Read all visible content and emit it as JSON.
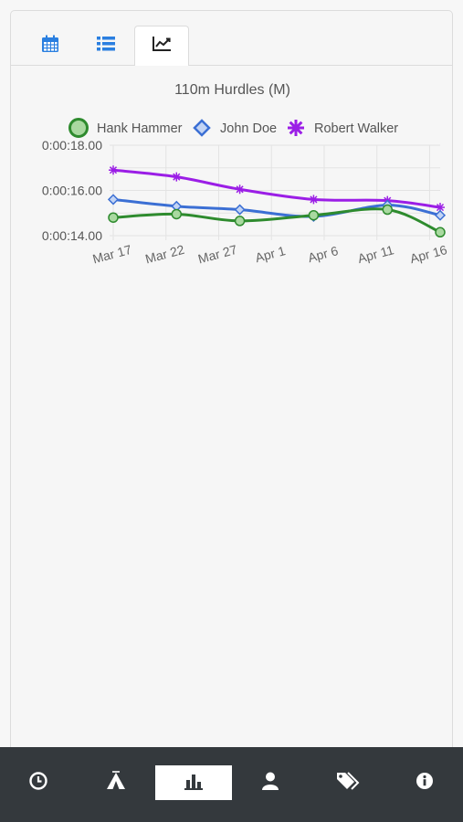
{
  "view_tabs": [
    {
      "icon": "calendar-icon",
      "active": false
    },
    {
      "icon": "list-icon",
      "active": false
    },
    {
      "icon": "line-chart-icon",
      "active": true
    }
  ],
  "chart_data": {
    "type": "line",
    "title": "110m Hurdles (M)",
    "xlabel": "",
    "ylabel": "",
    "x_ticks": [
      "Mar 17",
      "Mar 22",
      "Mar 27",
      "Apr 1",
      "Apr 6",
      "Apr 11",
      "Apr 16"
    ],
    "y_ticks": [
      "0:00:14.00",
      "0:00:16.00",
      "0:00:18.00"
    ],
    "ylim_seconds": [
      14,
      18
    ],
    "xlim": [
      "2016-03-17",
      "2016-04-17"
    ],
    "legend_position": "top",
    "grid": true,
    "series": [
      {
        "name": "Hank Hammer",
        "color": "#2e8b2e",
        "marker": "circle",
        "points": [
          {
            "x": "2016-03-17",
            "y": 14.8
          },
          {
            "x": "2016-03-23",
            "y": 14.95
          },
          {
            "x": "2016-03-29",
            "y": 14.65
          },
          {
            "x": "2016-04-05",
            "y": 14.9
          },
          {
            "x": "2016-04-12",
            "y": 15.15
          },
          {
            "x": "2016-04-17",
            "y": 14.15
          }
        ]
      },
      {
        "name": "John Doe",
        "color": "#3b6fd4",
        "marker": "diamond",
        "points": [
          {
            "x": "2016-03-17",
            "y": 15.6
          },
          {
            "x": "2016-03-23",
            "y": 15.3
          },
          {
            "x": "2016-03-29",
            "y": 15.15
          },
          {
            "x": "2016-04-05",
            "y": 14.85
          },
          {
            "x": "2016-04-12",
            "y": 15.35
          },
          {
            "x": "2016-04-17",
            "y": 14.9
          }
        ]
      },
      {
        "name": "Robert Walker",
        "color": "#9b1ee6",
        "marker": "asterisk",
        "points": [
          {
            "x": "2016-03-17",
            "y": 16.9
          },
          {
            "x": "2016-03-23",
            "y": 16.6
          },
          {
            "x": "2016-03-29",
            "y": 16.05
          },
          {
            "x": "2016-04-05",
            "y": 15.6
          },
          {
            "x": "2016-04-12",
            "y": 15.55
          },
          {
            "x": "2016-04-17",
            "y": 15.25
          }
        ]
      }
    ]
  },
  "bottom_nav": [
    {
      "icon": "clock-icon",
      "active": false
    },
    {
      "icon": "camp-icon",
      "active": false
    },
    {
      "icon": "bar-chart-icon",
      "active": true
    },
    {
      "icon": "user-icon",
      "active": false
    },
    {
      "icon": "tags-icon",
      "active": false
    },
    {
      "icon": "info-icon",
      "active": false
    }
  ]
}
